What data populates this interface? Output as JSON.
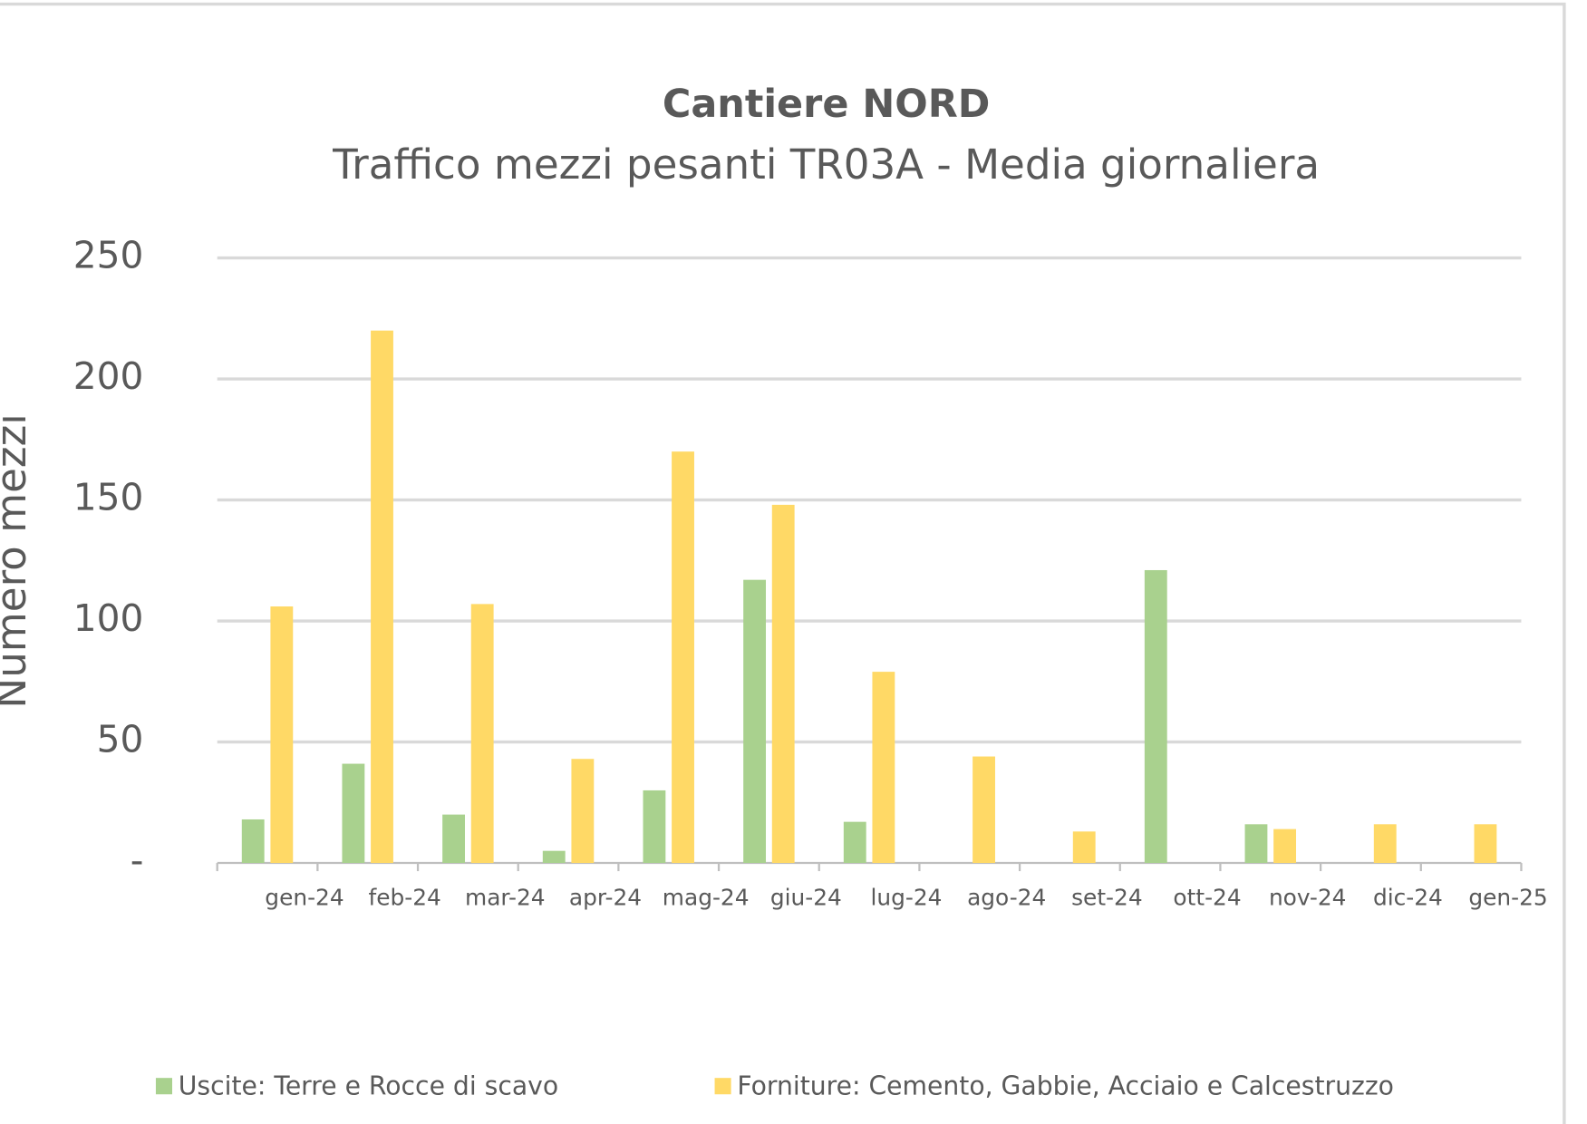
{
  "chart_data": {
    "type": "bar",
    "title": "Cantiere NORD",
    "subtitle": "Traffico mezzi pesanti TR03A - Media giornaliera",
    "y_label": "Numero mezzi",
    "categories": [
      "gen-24",
      "feb-24",
      "mar-24",
      "apr-24",
      "mag-24",
      "giu-24",
      "lug-24",
      "ago-24",
      "set-24",
      "ott-24",
      "nov-24",
      "dic-24",
      "gen-25"
    ],
    "series": [
      {
        "name": "Uscite: Terre e Rocce di scavo",
        "color": "#a9d18e",
        "values": [
          18,
          41,
          20,
          5,
          30,
          117,
          17,
          null,
          null,
          121,
          16,
          null,
          null
        ]
      },
      {
        "name": "Forniture: Cemento, Gabbie, Acciaio e Calcestruzzo",
        "color": "#ffd966",
        "values": [
          106,
          220,
          107,
          43,
          170,
          148,
          79,
          44,
          13,
          null,
          14,
          16,
          16
        ]
      }
    ],
    "ylim": [
      0,
      250
    ],
    "yticks": [
      {
        "value": 0,
        "label": "-"
      },
      50,
      100,
      150,
      200,
      250
    ],
    "grid": true,
    "legend": "bottom"
  }
}
